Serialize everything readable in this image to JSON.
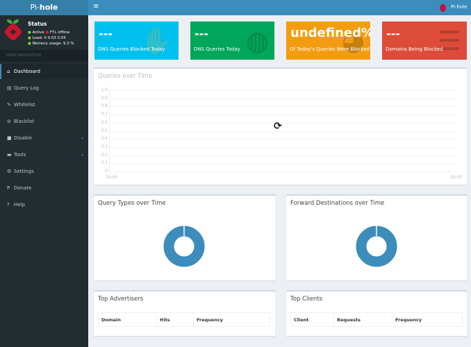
{
  "app": {
    "logo_light": "Pi-",
    "logo_bold": "hole",
    "menu_icon": "hamburger-icon",
    "user": "Pi-hole"
  },
  "status": {
    "title": "Status",
    "active": "Active",
    "ftl": "FTL offline",
    "load": "Load:  0  0.03  0.05",
    "memory": "Memory usage:  9.3 %",
    "colors": {
      "ok": "#7fd82c",
      "error": "#e02020"
    }
  },
  "sidebar": {
    "section": "MAIN NAVIGATION",
    "items": [
      {
        "label": "Dashboard",
        "icon": "home-icon"
      },
      {
        "label": "Query Log",
        "icon": "file-icon"
      },
      {
        "label": "Whitelist",
        "icon": "edit-icon"
      },
      {
        "label": "Blacklist",
        "icon": "ban-icon"
      },
      {
        "label": "Disable",
        "icon": "stop-icon"
      },
      {
        "label": "Tools",
        "icon": "folder-icon"
      },
      {
        "label": "Settings",
        "icon": "gears-icon"
      },
      {
        "label": "Donate",
        "icon": "paypal-icon"
      },
      {
        "label": "Help",
        "icon": "question-icon"
      }
    ]
  },
  "cards": [
    {
      "value": "---",
      "label": "DNS Queries Blocked Today",
      "color": "#00c0ef",
      "icon": "hand-icon"
    },
    {
      "value": "---",
      "label": "DNS Queries Today",
      "color": "#00a65a",
      "icon": "globe-icon"
    },
    {
      "value": "undefined%",
      "label": "Of Today's Queries Were Blocked",
      "color": "#f39c12",
      "icon": "pie-icon"
    },
    {
      "value": "---",
      "label": "Domains Being Blocked",
      "color": "#dd4b39",
      "icon": "list-icon"
    }
  ],
  "queries_chart": {
    "title": "Queries over Time",
    "yticks": [
      "1.0",
      "0.9",
      "0.8",
      "0.7",
      "0.6",
      "0.5",
      "0.4",
      "0.3",
      "0.2",
      "0.1",
      "0"
    ],
    "xticks": [
      "19:00",
      "20:00"
    ],
    "loading_icon": "refresh-icon"
  },
  "query_types": {
    "title": "Query Types over Time"
  },
  "forward": {
    "title": "Forward Destinations over Time"
  },
  "donut_color": "#3c8dbc",
  "top_ads": {
    "title": "Top Advertisers",
    "columns": [
      "Domain",
      "Hits",
      "Frequency"
    ]
  },
  "top_clients": {
    "title": "Top Clients",
    "columns": [
      "Client",
      "Requests",
      "Frequency"
    ]
  }
}
